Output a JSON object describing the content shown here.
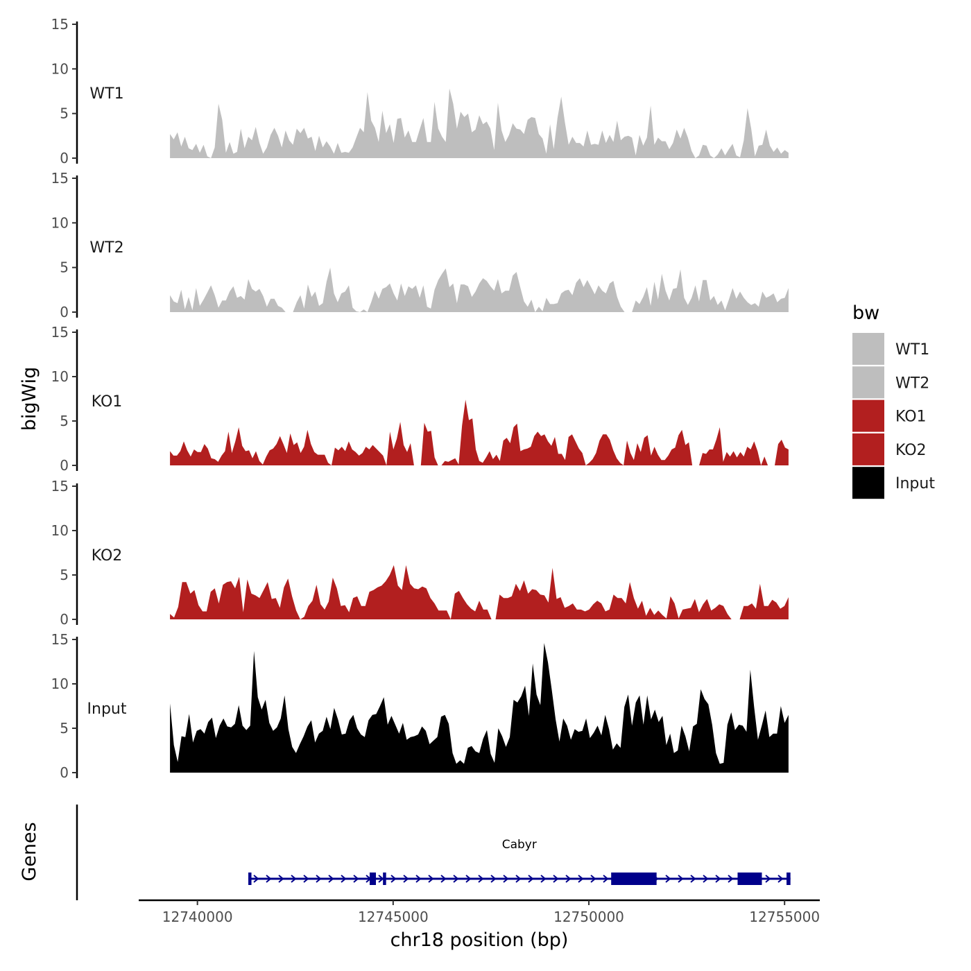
{
  "chart_data": {
    "type": "area",
    "chromosome": "chr18",
    "xlabel": "chr18 position (bp)",
    "ylabel": "bigWig",
    "genes_label": "Genes",
    "xlim": [
      12738500,
      12755900
    ],
    "xticks": [
      12740000,
      12745000,
      12750000,
      12755000
    ],
    "xtick_labels": [
      "12740000",
      "12745000",
      "12750000",
      "12755000"
    ],
    "ylim": [
      0,
      15
    ],
    "yticks": [
      0,
      5,
      10,
      15
    ],
    "ytick_labels": [
      "0",
      "5",
      "10",
      "15"
    ],
    "data_range": [
      12739300,
      12755100
    ],
    "legend": {
      "title": "bw",
      "entries": [
        {
          "label": "WT1",
          "color": "#bebebe"
        },
        {
          "label": "WT2",
          "color": "#bebebe"
        },
        {
          "label": "KO1",
          "color": "#b21f1f"
        },
        {
          "label": "KO2",
          "color": "#b21f1f"
        },
        {
          "label": "Input",
          "color": "#000000"
        }
      ]
    },
    "series": [
      {
        "name": "WT1",
        "color": "#bebebe",
        "values": [
          2.7,
          2.1,
          2.9,
          1.3,
          2.4,
          1.1,
          0.9,
          1.6,
          0.6,
          1.5,
          0.2,
          0.0,
          1.2,
          6.1,
          4.3,
          0.6,
          1.8,
          0.5,
          0.7,
          3.3,
          1.1,
          2.4,
          2.0,
          3.5,
          1.7,
          0.5,
          1.2,
          2.6,
          3.4,
          2.5,
          1.2,
          3.1,
          2.0,
          1.5,
          3.3,
          2.8,
          3.4,
          2.2,
          2.4,
          0.8,
          2.5,
          1.2,
          1.9,
          1.3,
          0.5,
          1.7,
          0.6,
          0.7,
          0.6,
          1.2,
          2.3,
          3.4,
          2.9,
          7.4,
          4.2,
          3.4,
          1.8,
          5.3,
          2.8,
          3.8,
          1.7,
          4.4,
          4.5,
          2.3,
          3.1,
          1.8,
          1.8,
          3.2,
          4.5,
          1.8,
          1.8,
          6.3,
          3.3,
          2.4,
          1.8,
          7.8,
          6.1,
          3.3,
          5.2,
          4.6,
          5.0,
          2.9,
          3.2,
          4.8,
          3.8,
          4.1,
          3.3,
          0.9,
          6.2,
          3.1,
          1.8,
          2.6,
          3.9,
          3.3,
          3.2,
          2.7,
          4.3,
          4.6,
          4.5,
          2.7,
          2.2,
          0.5,
          3.8,
          1.0,
          4.5,
          6.9,
          4.0,
          1.5,
          2.4,
          1.7,
          1.7,
          1.3,
          3.1,
          1.5,
          1.6,
          1.5,
          3.1,
          1.7,
          2.6,
          1.8,
          4.2,
          2.0,
          2.4,
          2.5,
          2.3,
          0.3,
          2.6,
          1.4,
          2.3,
          5.9,
          1.5,
          2.3,
          1.9,
          1.9,
          1.0,
          1.7,
          3.2,
          2.2,
          3.4,
          2.3,
          0.8,
          0.0,
          0.3,
          1.5,
          1.4,
          0.3,
          0.0,
          0.4,
          1.1,
          0.3,
          1.0,
          1.6,
          0.3,
          0.1,
          2.0,
          5.6,
          3.3,
          0.2,
          1.4,
          1.5,
          3.2,
          1.4,
          0.7,
          1.2,
          0.5,
          0.9,
          0.6
        ]
      },
      {
        "name": "WT2",
        "color": "#bebebe",
        "values": [
          1.9,
          1.2,
          1.0,
          2.5,
          0.3,
          1.7,
          0.2,
          2.7,
          0.7,
          1.4,
          2.2,
          3.0,
          1.9,
          0.5,
          1.3,
          1.3,
          2.3,
          2.9,
          1.6,
          1.8,
          1.4,
          3.7,
          2.6,
          2.3,
          2.6,
          1.8,
          0.6,
          1.5,
          1.5,
          0.7,
          0.5,
          0.0,
          0.0,
          0.0,
          1.1,
          1.9,
          0.4,
          3.1,
          1.7,
          2.3,
          0.7,
          1.0,
          3.4,
          5.0,
          2.1,
          1.1,
          2.1,
          2.3,
          3.0,
          0.5,
          0.1,
          0.0,
          0.3,
          0.0,
          1.1,
          2.4,
          1.5,
          2.6,
          2.8,
          3.2,
          2.1,
          1.3,
          3.2,
          1.8,
          2.9,
          2.6,
          3.0,
          1.6,
          3.0,
          0.6,
          0.4,
          2.5,
          3.6,
          4.3,
          4.9,
          2.8,
          3.2,
          1.0,
          3.1,
          3.1,
          2.9,
          1.7,
          2.3,
          3.2,
          3.8,
          3.5,
          2.9,
          2.4,
          3.7,
          2.1,
          2.4,
          2.4,
          4.1,
          4.5,
          2.8,
          1.2,
          0.6,
          1.4,
          0.0,
          0.6,
          0.1,
          1.6,
          0.9,
          0.9,
          1.0,
          2.1,
          2.4,
          2.5,
          1.9,
          3.3,
          3.8,
          2.8,
          3.6,
          2.8,
          2.0,
          3.0,
          2.4,
          2.1,
          3.2,
          3.5,
          1.7,
          0.6,
          0.0,
          0.0,
          0.0,
          1.3,
          0.9,
          1.7,
          2.8,
          0.7,
          3.4,
          1.4,
          4.3,
          2.4,
          1.3,
          2.6,
          2.7,
          4.8,
          1.6,
          0.8,
          1.6,
          3.0,
          1.2,
          3.6,
          3.6,
          1.3,
          1.8,
          0.8,
          1.3,
          0.2,
          1.4,
          2.7,
          1.5,
          2.3,
          1.6,
          1.1,
          0.8,
          1.0,
          0.6,
          2.3,
          1.6,
          1.8,
          2.1,
          1.1,
          1.5,
          1.6,
          2.7
        ]
      },
      {
        "name": "KO1",
        "color": "#b21f1f",
        "values": [
          1.6,
          1.1,
          1.1,
          1.6,
          2.7,
          1.7,
          1.0,
          1.8,
          1.5,
          1.5,
          2.4,
          1.9,
          0.8,
          0.7,
          0.4,
          1.1,
          1.6,
          3.8,
          1.4,
          2.7,
          4.3,
          2.2,
          1.6,
          1.7,
          0.8,
          1.6,
          0.5,
          0.1,
          1.0,
          1.7,
          1.9,
          2.4,
          3.3,
          2.4,
          1.4,
          3.6,
          2.3,
          2.6,
          1.4,
          2.1,
          4.0,
          2.4,
          1.5,
          1.2,
          1.2,
          1.2,
          0.3,
          0.0,
          2.0,
          1.7,
          2.1,
          1.6,
          2.7,
          1.8,
          1.5,
          1.1,
          1.4,
          2.1,
          1.8,
          2.3,
          1.9,
          1.5,
          1.1,
          0.0,
          3.8,
          1.8,
          3.0,
          4.9,
          2.3,
          1.5,
          2.5,
          0.0,
          0.0,
          0.0,
          4.8,
          3.8,
          3.9,
          0.9,
          0.0,
          0.0,
          0.5,
          0.4,
          0.6,
          0.8,
          0.1,
          4.5,
          7.4,
          5.1,
          5.3,
          1.8,
          0.5,
          0.3,
          0.9,
          1.6,
          0.7,
          1.2,
          0.5,
          2.8,
          3.1,
          2.5,
          4.3,
          4.7,
          1.6,
          1.8,
          1.9,
          2.1,
          3.3,
          3.8,
          3.3,
          3.5,
          2.7,
          2.2,
          3.2,
          1.3,
          1.3,
          0.6,
          3.2,
          3.5,
          2.7,
          1.9,
          1.4,
          0.0,
          0.3,
          0.7,
          1.4,
          2.8,
          3.5,
          3.5,
          2.9,
          1.7,
          0.8,
          0.3,
          0.0,
          2.8,
          1.4,
          0.6,
          2.5,
          1.5,
          3.1,
          3.4,
          1.1,
          2.1,
          1.2,
          0.6,
          0.6,
          1.1,
          1.8,
          2.0,
          3.4,
          4.0,
          2.3,
          2.6,
          0.0,
          0.0,
          0.0,
          1.4,
          1.3,
          1.8,
          1.8,
          2.9,
          4.3,
          0.4,
          1.5,
          1.0,
          1.6,
          0.9,
          1.5,
          1.0,
          2.1,
          1.8,
          2.7,
          1.6,
          0.0,
          1.0,
          0.0,
          0.0,
          0.0,
          2.4,
          2.9,
          2.0,
          1.8
        ]
      },
      {
        "name": "KO2",
        "color": "#b21f1f",
        "values": [
          0.6,
          0.2,
          1.4,
          4.2,
          4.2,
          2.9,
          3.3,
          1.6,
          0.9,
          0.9,
          3.1,
          3.5,
          1.8,
          3.9,
          4.2,
          4.3,
          3.5,
          4.8,
          0.8,
          4.5,
          2.9,
          2.7,
          2.4,
          3.3,
          4.2,
          2.3,
          2.4,
          1.3,
          3.6,
          4.6,
          2.6,
          1.0,
          0.0,
          0.3,
          1.5,
          2.1,
          3.9,
          1.7,
          1.1,
          2.0,
          4.7,
          3.5,
          1.5,
          1.6,
          0.8,
          2.4,
          2.6,
          1.5,
          1.5,
          3.1,
          3.3,
          3.6,
          3.8,
          4.3,
          5.0,
          6.1,
          3.8,
          3.3,
          6.1,
          4.0,
          3.5,
          3.4,
          3.7,
          3.5,
          2.4,
          1.8,
          1.0,
          1.0,
          1.0,
          0.0,
          2.9,
          3.2,
          2.4,
          1.7,
          1.2,
          0.9,
          2.1,
          1.1,
          1.1,
          0.0,
          0.0,
          2.8,
          2.4,
          2.4,
          2.6,
          4.0,
          3.2,
          4.4,
          2.9,
          3.4,
          3.3,
          2.8,
          2.7,
          1.9,
          5.8,
          2.3,
          2.5,
          1.3,
          1.5,
          1.8,
          1.1,
          1.1,
          0.9,
          1.1,
          1.7,
          2.1,
          1.8,
          0.9,
          1.1,
          2.8,
          2.4,
          2.4,
          1.8,
          4.2,
          2.4,
          1.2,
          2.1,
          0.4,
          1.3,
          0.5,
          1.0,
          0.5,
          0.1,
          2.6,
          1.8,
          0.1,
          1.1,
          1.2,
          1.3,
          2.3,
          0.8,
          1.7,
          2.3,
          1.0,
          1.3,
          1.7,
          1.5,
          0.6,
          0.0,
          0.0,
          0.0,
          1.5,
          1.5,
          1.8,
          1.2,
          4.0,
          1.5,
          1.5,
          2.2,
          1.9,
          1.2,
          1.5,
          2.5
        ]
      },
      {
        "name": "Input",
        "color": "#000000",
        "values": [
          7.8,
          3.1,
          1.2,
          4.1,
          4.0,
          6.6,
          3.4,
          4.7,
          4.9,
          4.4,
          5.7,
          6.2,
          3.9,
          5.3,
          6.1,
          5.2,
          5.1,
          5.5,
          7.6,
          5.3,
          4.8,
          5.3,
          13.7,
          8.5,
          7.1,
          8.2,
          5.6,
          4.7,
          5.1,
          6.1,
          8.7,
          4.9,
          2.9,
          2.2,
          3.2,
          4.1,
          5.2,
          5.9,
          3.4,
          4.4,
          4.7,
          6.3,
          4.9,
          7.3,
          6.0,
          4.3,
          4.4,
          5.9,
          6.5,
          5.0,
          4.3,
          4.0,
          5.9,
          6.5,
          6.6,
          7.5,
          8.5,
          5.4,
          6.4,
          5.4,
          4.4,
          5.6,
          3.7,
          4.0,
          4.1,
          4.3,
          5.2,
          4.7,
          3.2,
          3.6,
          4.0,
          6.3,
          6.5,
          5.5,
          2.2,
          1.0,
          1.4,
          1.0,
          2.8,
          3.0,
          2.4,
          2.2,
          3.8,
          4.8,
          2.1,
          1.1,
          5.0,
          4.1,
          2.9,
          4.0,
          8.2,
          7.9,
          8.6,
          9.8,
          6.4,
          12.3,
          8.8,
          7.6,
          14.6,
          12.4,
          9.3,
          6.0,
          3.5,
          6.1,
          5.3,
          3.7,
          4.9,
          4.6,
          4.7,
          6.1,
          3.9,
          4.5,
          5.3,
          4.2,
          6.5,
          4.9,
          2.6,
          3.3,
          2.8,
          7.4,
          8.8,
          5.3,
          7.9,
          8.7,
          5.4,
          8.7,
          6.0,
          7.1,
          5.7,
          6.4,
          3.1,
          4.4,
          2.2,
          2.5,
          5.3,
          4.1,
          2.4,
          5.2,
          5.5,
          9.4,
          8.3,
          7.7,
          5.4,
          2.2,
          1.0,
          1.1,
          5.4,
          6.8,
          4.8,
          5.4,
          5.3,
          4.6,
          11.6,
          7.4,
          3.7,
          5.3,
          7.0,
          4.0,
          4.4,
          4.4,
          7.5,
          5.6,
          6.5
        ]
      }
    ],
    "gene": {
      "name": "Cabyr",
      "color": "#00008b",
      "start": 12741300,
      "end": 12755150,
      "blocks": [
        [
          12741300,
          12741380
        ],
        [
          12744400,
          12744560
        ],
        [
          12744740,
          12744820
        ],
        [
          12750570,
          12751730
        ],
        [
          12753800,
          12754420
        ],
        [
          12755050,
          12755150
        ]
      ]
    }
  }
}
